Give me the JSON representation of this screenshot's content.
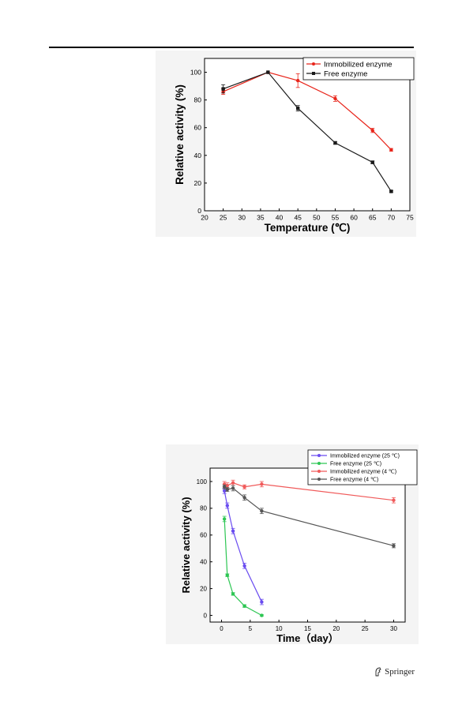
{
  "page": {
    "publisher": "Springer",
    "publisher_logo_icon": "springer-horse-icon"
  },
  "figures": [
    {
      "id": "temperature",
      "chart_data": {
        "type": "line",
        "xlabel": "Temperature (℃)",
        "ylabel": "Relative activity (%)",
        "xlim": [
          20,
          75
        ],
        "ylim": [
          0,
          110
        ],
        "xticks": [
          "20",
          "25",
          "30",
          "35",
          "40",
          "45",
          "50",
          "55",
          "60",
          "65",
          "70",
          "75"
        ],
        "yticks": [
          "0",
          "20",
          "40",
          "60",
          "80",
          "100"
        ],
        "grid": false,
        "legend_position": "top-right",
        "series": [
          {
            "name": "Immobilized enzyme",
            "color": "#e8251b",
            "marker": "circle",
            "x": [
              25,
              37,
              45,
              55,
              65,
              70
            ],
            "y": [
              86,
              100,
              94,
              81,
              58,
              44
            ],
            "err": [
              2,
              0,
              5,
              2,
              1.5,
              1
            ]
          },
          {
            "name": "Free enzyme",
            "color": "#1a1a1a",
            "marker": "square",
            "x": [
              25,
              37,
              45,
              55,
              65,
              70
            ],
            "y": [
              88,
              100,
              74,
              49,
              35,
              14
            ],
            "err": [
              3,
              0,
              2,
              1,
              1,
              0.5
            ]
          }
        ]
      }
    },
    {
      "id": "storage",
      "chart_data": {
        "type": "line",
        "xlabel": "Time（day）",
        "ylabel": "Relative activity (%)",
        "xlim": [
          -2,
          32
        ],
        "ylim": [
          -5,
          110
        ],
        "xticks": [
          "0",
          "5",
          "10",
          "15",
          "20",
          "25",
          "30"
        ],
        "yticks": [
          "0",
          "20",
          "40",
          "60",
          "80",
          "100"
        ],
        "grid": false,
        "legend_position": "top-right",
        "series": [
          {
            "name": "Immobilized enzyme (25 ℃)",
            "color": "#6a4cf0",
            "marker": "circle",
            "x": [
              0.5,
              1,
              2,
              4,
              7
            ],
            "y": [
              93,
              82,
              63,
              37,
              10
            ],
            "err": [
              2,
              2,
              2,
              2,
              2
            ]
          },
          {
            "name": "Free enzyme (25 ℃)",
            "color": "#2dc653",
            "marker": "circle",
            "x": [
              0.5,
              1,
              2,
              4,
              7
            ],
            "y": [
              72,
              30,
              16,
              7,
              0
            ],
            "err": [
              2,
              1,
              1,
              1,
              0.5
            ]
          },
          {
            "name": "Immobilized enzyme (4 ℃)",
            "color": "#f05a5a",
            "marker": "circle",
            "x": [
              0.5,
              1,
              2,
              4,
              7,
              30
            ],
            "y": [
              98,
              97,
              99,
              96,
              98,
              86
            ],
            "err": [
              2,
              2,
              2,
              1.5,
              2,
              2
            ]
          },
          {
            "name": "Free enzyme (4 ℃)",
            "color": "#555555",
            "marker": "circle",
            "x": [
              0.5,
              1,
              2,
              4,
              7,
              30
            ],
            "y": [
              96,
              94,
              95,
              88,
              78,
              52
            ],
            "err": [
              1.5,
              1.5,
              2,
              2,
              2,
              1.5
            ]
          }
        ]
      }
    }
  ]
}
